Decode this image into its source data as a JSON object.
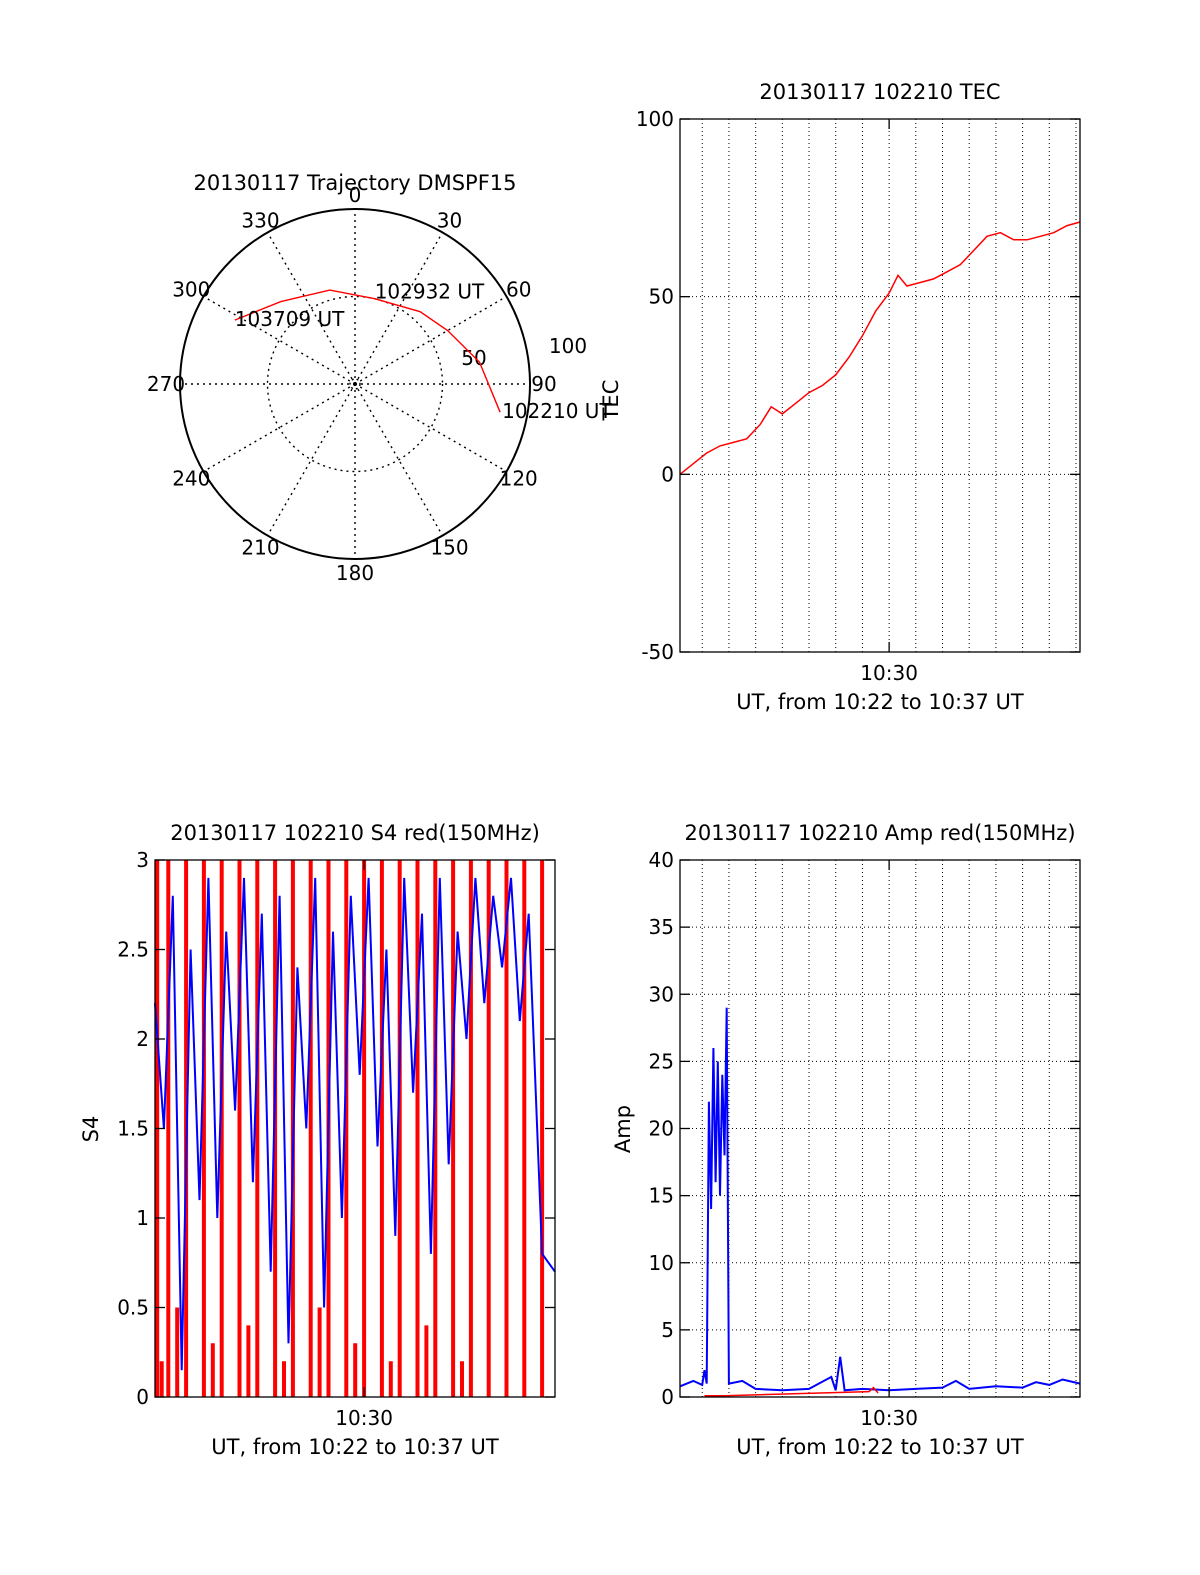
{
  "colors": {
    "red": "#ff0000",
    "blue": "#0000ff",
    "axis": "#000000",
    "grid": "#000000"
  },
  "chart_data": [
    {
      "id": "trajectory",
      "type": "polar",
      "title": "20130117 Trajectory DMSPF15",
      "angle_labels": [
        "0",
        "30",
        "60",
        "90",
        "120",
        "150",
        "180",
        "210",
        "240",
        "270",
        "300",
        "330"
      ],
      "radial_labels": [
        "50",
        "100"
      ],
      "elevation_max": 90,
      "grid": true,
      "track": [
        {
          "az": 298,
          "el": 20,
          "label": "103709 UT"
        },
        {
          "az": 318,
          "el": 33
        },
        {
          "az": 345,
          "el": 40
        },
        {
          "az": 13,
          "el": 45,
          "label": "102932 UT"
        },
        {
          "az": 42,
          "el": 40
        },
        {
          "az": 60,
          "el": 35
        },
        {
          "az": 80,
          "el": 25
        },
        {
          "az": 101,
          "el": 14,
          "label": "102210 UT"
        }
      ]
    },
    {
      "id": "tec",
      "type": "line",
      "title": "20130117 102210 TEC",
      "xlabel": "UT, from 10:22 to 10:37 UT",
      "ylabel": "TEC",
      "x_range": [
        "10:22:10",
        "10:37:09"
      ],
      "ylim": [
        -50,
        100
      ],
      "y_ticks": [
        "-50",
        "0",
        "50",
        "100"
      ],
      "x_ticks": [
        {
          "t": "10:30:00",
          "label": "10:30"
        }
      ],
      "grid": true,
      "series": [
        {
          "color": "red",
          "points": [
            [
              "10:22:10",
              0
            ],
            [
              "10:22:40",
              3
            ],
            [
              "10:23:10",
              6
            ],
            [
              "10:23:40",
              8
            ],
            [
              "10:24:10",
              9
            ],
            [
              "10:24:40",
              10
            ],
            [
              "10:25:10",
              14
            ],
            [
              "10:25:35",
              19
            ],
            [
              "10:26:00",
              17
            ],
            [
              "10:26:30",
              20
            ],
            [
              "10:27:00",
              23
            ],
            [
              "10:27:30",
              25
            ],
            [
              "10:28:00",
              28
            ],
            [
              "10:28:30",
              33
            ],
            [
              "10:29:00",
              39
            ],
            [
              "10:29:30",
              46
            ],
            [
              "10:30:00",
              51
            ],
            [
              "10:30:20",
              56
            ],
            [
              "10:30:40",
              53
            ],
            [
              "10:31:10",
              54
            ],
            [
              "10:31:40",
              55
            ],
            [
              "10:32:10",
              57
            ],
            [
              "10:32:40",
              59
            ],
            [
              "10:33:10",
              63
            ],
            [
              "10:33:40",
              67
            ],
            [
              "10:34:10",
              68
            ],
            [
              "10:34:40",
              66
            ],
            [
              "10:35:10",
              66
            ],
            [
              "10:35:40",
              67
            ],
            [
              "10:36:10",
              68
            ],
            [
              "10:36:40",
              70
            ],
            [
              "10:37:09",
              71
            ]
          ]
        }
      ]
    },
    {
      "id": "s4",
      "type": "line",
      "title": "20130117 102210 S4 red(150MHz)",
      "xlabel": "UT, from 10:22 to 10:37 UT",
      "ylabel": "S4",
      "x_range": [
        "10:22:10",
        "10:37:09"
      ],
      "ylim": [
        0,
        3
      ],
      "y_ticks": [
        "0",
        "0.5",
        "1",
        "1.5",
        "2",
        "2.5",
        "3"
      ],
      "x_ticks": [
        {
          "t": "10:30:00",
          "label": "10:30"
        }
      ],
      "grid": false,
      "series": [
        {
          "color": "red",
          "points": [
            [
              "10:22:15",
              3
            ],
            [
              "10:22:25",
              0.2
            ],
            [
              "10:22:40",
              3
            ],
            [
              "10:23:00",
              0.5
            ],
            [
              "10:23:20",
              3
            ],
            [
              "10:23:40",
              0
            ],
            [
              "10:24:00",
              3
            ],
            [
              "10:24:20",
              0.3
            ],
            [
              "10:24:40",
              3
            ],
            [
              "10:25:00",
              0
            ],
            [
              "10:25:20",
              3
            ],
            [
              "10:25:40",
              0.4
            ],
            [
              "10:26:00",
              3
            ],
            [
              "10:26:20",
              0
            ],
            [
              "10:26:40",
              3
            ],
            [
              "10:27:00",
              0.2
            ],
            [
              "10:27:20",
              3
            ],
            [
              "10:27:40",
              0
            ],
            [
              "10:28:00",
              3
            ],
            [
              "10:28:20",
              0.5
            ],
            [
              "10:28:40",
              3
            ],
            [
              "10:29:00",
              0
            ],
            [
              "10:29:20",
              3
            ],
            [
              "10:29:40",
              0.3
            ],
            [
              "10:30:00",
              3
            ],
            [
              "10:30:20",
              0
            ],
            [
              "10:30:40",
              3
            ],
            [
              "10:31:00",
              0.2
            ],
            [
              "10:31:20",
              3
            ],
            [
              "10:31:40",
              0
            ],
            [
              "10:32:00",
              3
            ],
            [
              "10:32:20",
              0.4
            ],
            [
              "10:32:40",
              3
            ],
            [
              "10:33:00",
              0
            ],
            [
              "10:33:20",
              3
            ],
            [
              "10:33:40",
              0.2
            ],
            [
              "10:34:00",
              3
            ],
            [
              "10:34:20",
              0
            ],
            [
              "10:34:40",
              3
            ],
            [
              "10:35:00",
              0
            ],
            [
              "10:35:20",
              3
            ],
            [
              "10:35:40",
              0
            ],
            [
              "10:36:00",
              3
            ],
            [
              "10:36:20",
              0
            ],
            [
              "10:36:40",
              3
            ],
            [
              "10:37:00",
              0
            ]
          ]
        },
        {
          "color": "blue",
          "points": [
            [
              "10:22:10",
              2.2
            ],
            [
              "10:22:30",
              1.5
            ],
            [
              "10:22:50",
              2.8
            ],
            [
              "10:23:10",
              0.15
            ],
            [
              "10:23:30",
              2.5
            ],
            [
              "10:23:50",
              1.1
            ],
            [
              "10:24:10",
              2.9
            ],
            [
              "10:24:30",
              1.0
            ],
            [
              "10:24:50",
              2.6
            ],
            [
              "10:25:10",
              1.6
            ],
            [
              "10:25:30",
              2.9
            ],
            [
              "10:25:50",
              1.2
            ],
            [
              "10:26:10",
              2.7
            ],
            [
              "10:26:30",
              0.7
            ],
            [
              "10:26:50",
              2.8
            ],
            [
              "10:27:10",
              0.3
            ],
            [
              "10:27:30",
              2.4
            ],
            [
              "10:27:50",
              1.5
            ],
            [
              "10:28:10",
              2.9
            ],
            [
              "10:28:30",
              0.5
            ],
            [
              "10:28:50",
              2.6
            ],
            [
              "10:29:10",
              1.0
            ],
            [
              "10:29:30",
              2.8
            ],
            [
              "10:29:50",
              1.8
            ],
            [
              "10:30:10",
              2.9
            ],
            [
              "10:30:30",
              1.4
            ],
            [
              "10:30:50",
              2.5
            ],
            [
              "10:31:10",
              0.9
            ],
            [
              "10:31:30",
              2.9
            ],
            [
              "10:31:50",
              1.7
            ],
            [
              "10:32:10",
              2.7
            ],
            [
              "10:32:30",
              0.8
            ],
            [
              "10:32:50",
              2.9
            ],
            [
              "10:33:10",
              1.3
            ],
            [
              "10:33:30",
              2.6
            ],
            [
              "10:33:50",
              2.0
            ],
            [
              "10:34:10",
              2.9
            ],
            [
              "10:34:30",
              2.2
            ],
            [
              "10:34:50",
              2.8
            ],
            [
              "10:35:10",
              2.4
            ],
            [
              "10:35:30",
              2.9
            ],
            [
              "10:35:50",
              2.1
            ],
            [
              "10:36:10",
              2.7
            ],
            [
              "10:36:40",
              0.8
            ],
            [
              "10:37:09",
              0.7
            ]
          ]
        }
      ]
    },
    {
      "id": "amp",
      "type": "line",
      "title": "20130117 102210 Amp red(150MHz)",
      "xlabel": "UT, from 10:22 to 10:37 UT",
      "ylabel": "Amp",
      "x_range": [
        "10:22:10",
        "10:37:09"
      ],
      "ylim": [
        0,
        40
      ],
      "y_ticks": [
        "0",
        "5",
        "10",
        "15",
        "20",
        "25",
        "30",
        "35",
        "40"
      ],
      "x_ticks": [
        {
          "t": "10:30:00",
          "label": "10:30"
        }
      ],
      "grid": true,
      "series": [
        {
          "color": "blue",
          "points": [
            [
              "10:22:10",
              0.8
            ],
            [
              "10:22:40",
              1.2
            ],
            [
              "10:23:00",
              0.9
            ],
            [
              "10:23:05",
              2.0
            ],
            [
              "10:23:10",
              1.0
            ],
            [
              "10:23:15",
              22
            ],
            [
              "10:23:20",
              14
            ],
            [
              "10:23:25",
              26
            ],
            [
              "10:23:30",
              16
            ],
            [
              "10:23:35",
              25
            ],
            [
              "10:23:40",
              15
            ],
            [
              "10:23:45",
              24
            ],
            [
              "10:23:50",
              18
            ],
            [
              "10:23:55",
              29
            ],
            [
              "10:24:00",
              1.0
            ],
            [
              "10:24:30",
              1.2
            ],
            [
              "10:25:00",
              0.6
            ],
            [
              "10:26:00",
              0.5
            ],
            [
              "10:27:00",
              0.6
            ],
            [
              "10:27:50",
              1.5
            ],
            [
              "10:28:00",
              0.5
            ],
            [
              "10:28:10",
              3.0
            ],
            [
              "10:28:20",
              0.5
            ],
            [
              "10:29:00",
              0.6
            ],
            [
              "10:30:00",
              0.5
            ],
            [
              "10:31:00",
              0.6
            ],
            [
              "10:32:00",
              0.7
            ],
            [
              "10:32:30",
              1.2
            ],
            [
              "10:33:00",
              0.6
            ],
            [
              "10:34:00",
              0.8
            ],
            [
              "10:35:00",
              0.7
            ],
            [
              "10:35:30",
              1.1
            ],
            [
              "10:36:00",
              0.9
            ],
            [
              "10:36:30",
              1.3
            ],
            [
              "10:37:09",
              1.0
            ]
          ]
        },
        {
          "color": "red",
          "points": [
            [
              "10:23:05",
              0.1
            ],
            [
              "10:23:50",
              0.1
            ],
            [
              "10:29:15",
              0.4
            ],
            [
              "10:29:25",
              0.7
            ],
            [
              "10:29:35",
              0.3
            ]
          ]
        }
      ]
    }
  ]
}
